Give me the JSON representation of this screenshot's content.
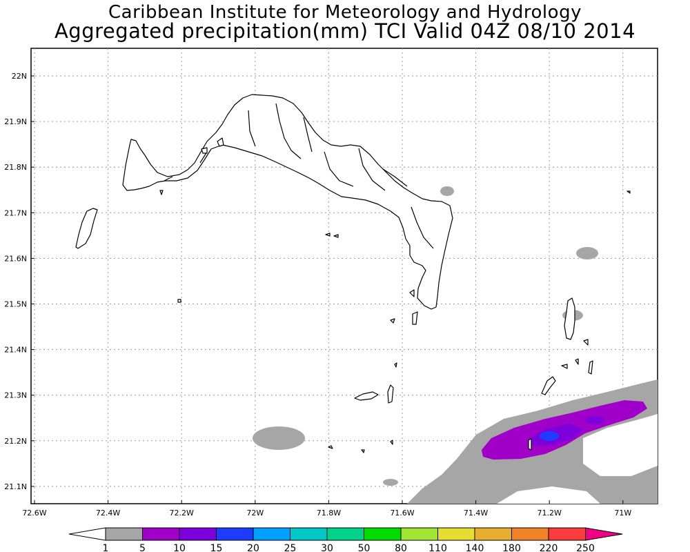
{
  "title_line1": "Caribbean Institute for Meteorology and Hydrology",
  "title_line2": "Aggregated precipitation(mm) TCI Valid 04Z 08/10 2014",
  "lat_ticks": [
    "22N",
    "21.9N",
    "21.8N",
    "21.7N",
    "21.6N",
    "21.5N",
    "21.4N",
    "21.3N",
    "21.2N",
    "21.1N"
  ],
  "lon_ticks": [
    "72.6W",
    "72.4W",
    "72.2W",
    "72W",
    "71.8W",
    "71.6W",
    "71.4W",
    "71.2W",
    "71W"
  ],
  "colorbar": {
    "labels": [
      "1",
      "5",
      "10",
      "15",
      "20",
      "25",
      "30",
      "50",
      "80",
      "110",
      "140",
      "180",
      "220",
      "250"
    ],
    "colors": [
      "#a6a6a6",
      "#a000c8",
      "#7d00dc",
      "#1e3cff",
      "#00a0ff",
      "#00c8c8",
      "#00d28c",
      "#00dc00",
      "#a0e632",
      "#e6dc32",
      "#e6af2d",
      "#f08228",
      "#fa3c3c",
      "#f00082"
    ]
  }
}
